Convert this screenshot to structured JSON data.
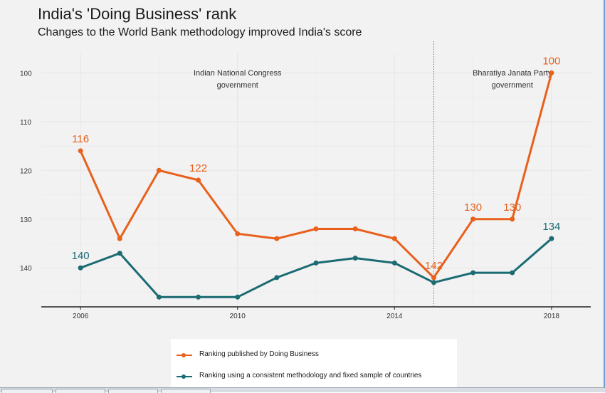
{
  "chart_data": {
    "type": "line",
    "title": "India's 'Doing Business' rank",
    "subtitle": "Changes to the World Bank methodology improved India's score",
    "xlim": [
      2005,
      2019
    ],
    "ylim": [
      148,
      96
    ],
    "x_ticks": [
      2006,
      2010,
      2014,
      2018
    ],
    "x_tick_labels": [
      "2006",
      "2010",
      "2014",
      "2018"
    ],
    "y_ticks": [
      100,
      110,
      120,
      130,
      140
    ],
    "y_tick_labels": [
      "100",
      "110",
      "120",
      "130",
      "140"
    ],
    "y_inverted": true,
    "grid": true,
    "x": [
      2006,
      2007,
      2008,
      2009,
      2010,
      2011,
      2012,
      2013,
      2014,
      2015,
      2016,
      2017,
      2018
    ],
    "series": [
      {
        "name": "Ranking published by Doing Business",
        "color": "#e8601c",
        "values": [
          116,
          134,
          120,
          122,
          133,
          134,
          132,
          132,
          134,
          142,
          130,
          130,
          100
        ],
        "labels": [
          {
            "x": 2006,
            "y": 116,
            "text": "116"
          },
          {
            "x": 2009,
            "y": 122,
            "text": "122"
          },
          {
            "x": 2015,
            "y": 142,
            "text": "142"
          },
          {
            "x": 2016,
            "y": 130,
            "text": "130"
          },
          {
            "x": 2017,
            "y": 130,
            "text": "130"
          },
          {
            "x": 2018,
            "y": 100,
            "text": "100"
          }
        ]
      },
      {
        "name": "Ranking using a consistent methodology and fixed sample of countries",
        "color": "#1b6b73",
        "values": [
          140,
          137,
          146,
          146,
          146,
          142,
          139,
          138,
          139,
          143,
          141,
          141,
          134
        ],
        "labels": [
          {
            "x": 2006,
            "y": 140,
            "text": "140"
          },
          {
            "x": 2018,
            "y": 134,
            "text": "134"
          }
        ]
      }
    ],
    "annotations": [
      {
        "text_lines": [
          "Indian National Congress",
          "government"
        ],
        "x": 2010,
        "y": 100.5
      },
      {
        "text_lines": [
          "Bharatiya Janata Party",
          "government"
        ],
        "x": 2017,
        "y": 100.5
      }
    ],
    "divider": {
      "x": 2015,
      "style": "dotted"
    },
    "legend_position": "bottom"
  }
}
